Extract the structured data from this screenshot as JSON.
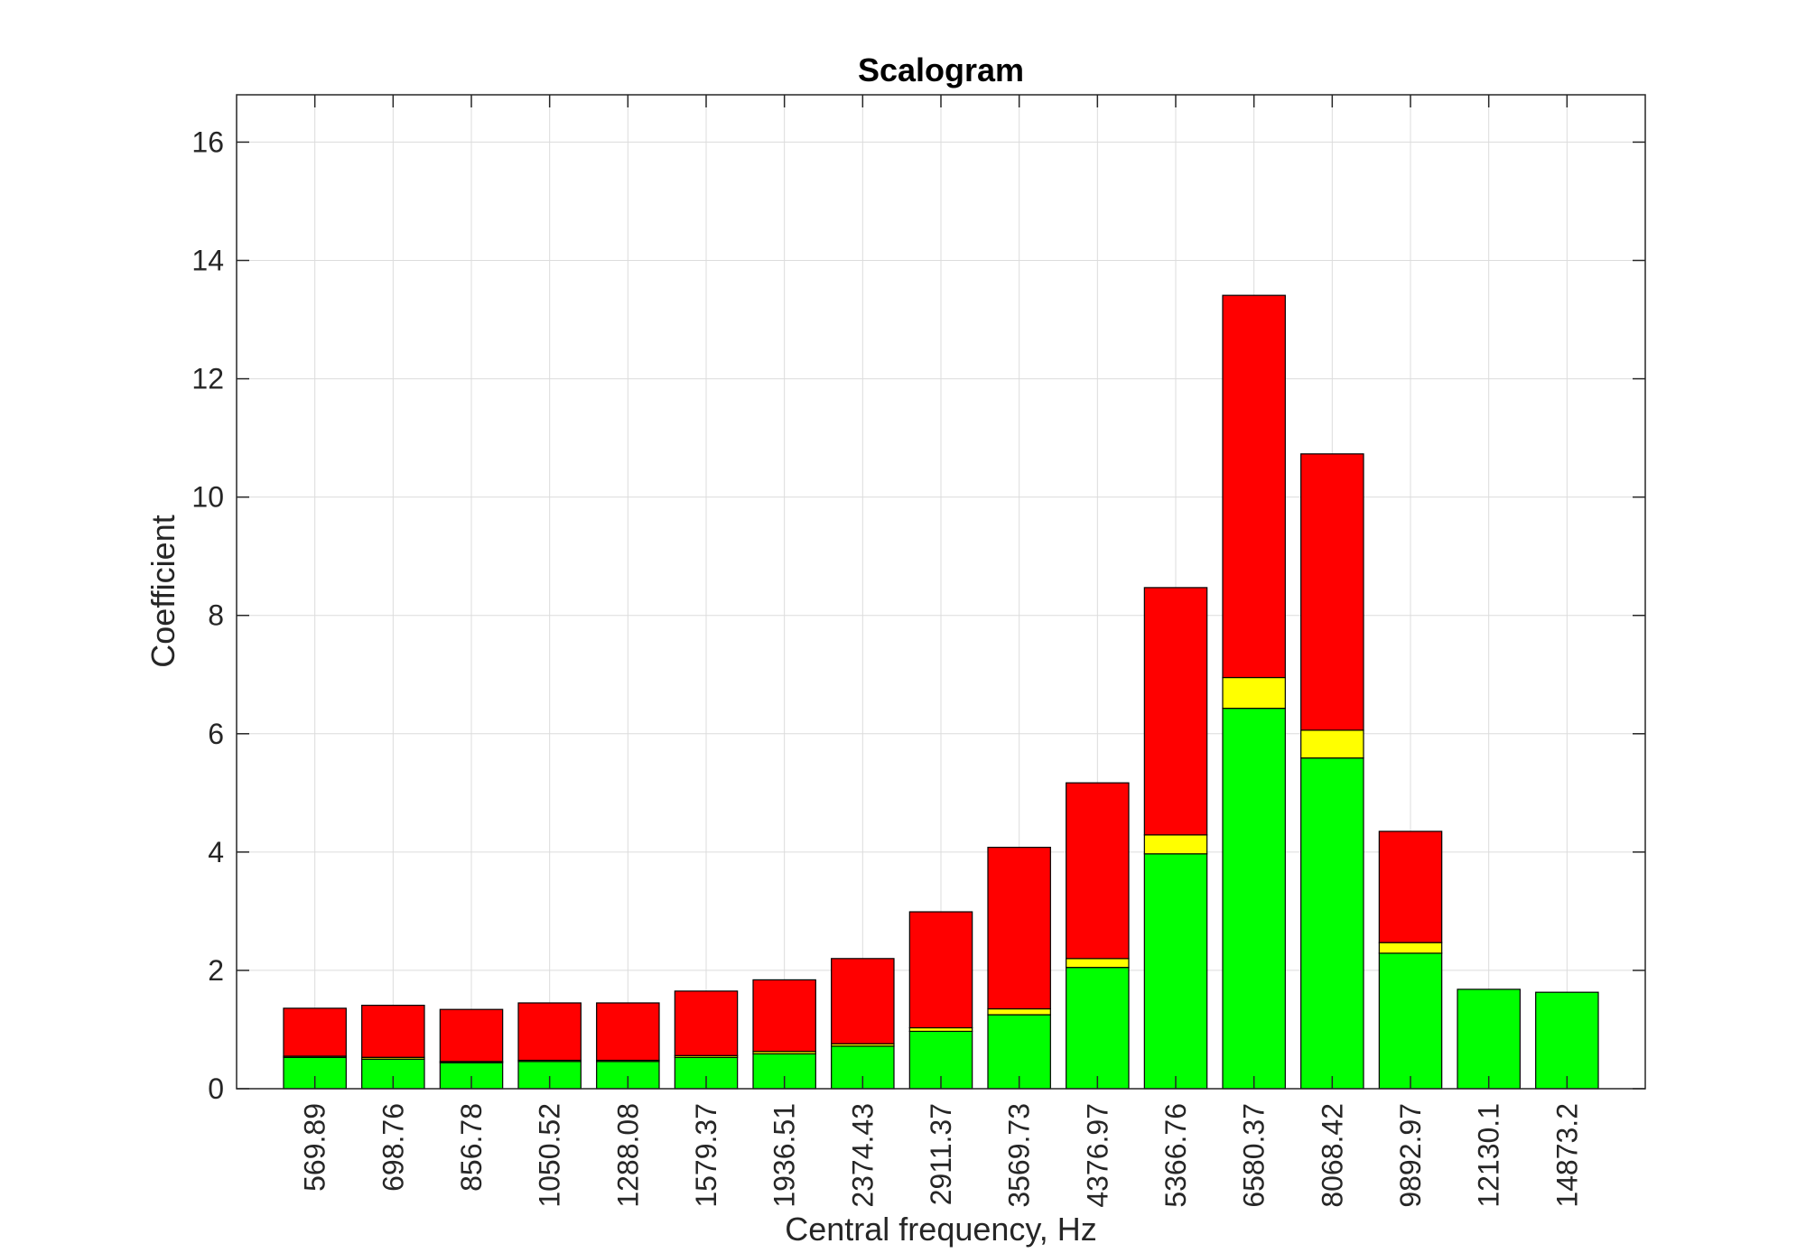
{
  "chart_data": {
    "type": "bar",
    "stacked": true,
    "title": "Scalogram",
    "xlabel": "Central frequency, Hz",
    "ylabel": "Coefficient",
    "ylim": [
      0,
      16.8
    ],
    "yticks": [
      0,
      2,
      4,
      6,
      8,
      10,
      12,
      14,
      16
    ],
    "grid": true,
    "categories": [
      "569.89",
      "698.76",
      "856.78",
      "1050.52",
      "1288.08",
      "1579.37",
      "1936.51",
      "2374.43",
      "2911.37",
      "3569.73",
      "4376.97",
      "5366.76",
      "6580.37",
      "8068.42",
      "9892.97",
      "12130.1",
      "14873.2"
    ],
    "series": [
      {
        "color": "#00ff00",
        "values": [
          0.53,
          0.5,
          0.44,
          0.46,
          0.46,
          0.53,
          0.59,
          0.72,
          0.97,
          1.25,
          2.05,
          3.97,
          6.43,
          5.59,
          2.29,
          1.68,
          1.63
        ]
      },
      {
        "color": "#ffff00",
        "values": [
          0.02,
          0.03,
          0.02,
          0.02,
          0.02,
          0.03,
          0.04,
          0.04,
          0.06,
          0.1,
          0.15,
          0.32,
          0.52,
          0.47,
          0.18,
          0.0,
          0.0
        ]
      },
      {
        "color": "#ff0000",
        "values": [
          0.81,
          0.88,
          0.88,
          0.97,
          0.97,
          1.09,
          1.21,
          1.44,
          1.96,
          2.73,
          2.97,
          4.18,
          6.46,
          4.67,
          1.88,
          0.0,
          0.0
        ]
      }
    ]
  }
}
